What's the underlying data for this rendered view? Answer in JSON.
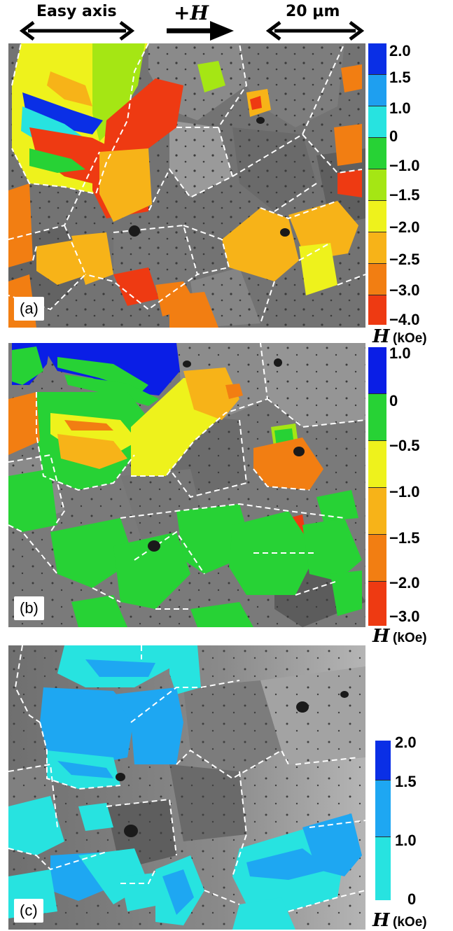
{
  "header": {
    "easy_axis": "Easy axis",
    "field_label": "+H",
    "scale": "20 μm"
  },
  "panels": [
    {
      "label": "(a)",
      "colorbar_ticks": [
        "2.0",
        "1.5",
        "1.0",
        "0",
        "−1.0",
        "−1.5",
        "−2.0",
        "−2.5",
        "−3.0",
        "−4.0"
      ],
      "colorbar_colors": [
        "#0a2fe6",
        "#1e9ff0",
        "#27e3e0",
        "#27d235",
        "#a5e614",
        "#eef21c",
        "#f7b318",
        "#f27e12",
        "#ee3a12"
      ]
    },
    {
      "label": "(b)",
      "colorbar_ticks": [
        "1.0",
        "0",
        "−0.5",
        "−1.0",
        "−1.5",
        "−2.0",
        "−3.0"
      ],
      "colorbar_colors": [
        "#0a1ee6",
        "#27d235",
        "#eef21c",
        "#f7b318",
        "#f27e12",
        "#ee3a12"
      ]
    },
    {
      "label": "(c)",
      "colorbar_ticks": [
        "2.0",
        "1.5",
        "1.0",
        "0"
      ],
      "colorbar_colors": [
        "#0a2fe6",
        "#1ea7f2",
        "#27e3e0"
      ]
    }
  ],
  "unit": {
    "symbol": "H",
    "text": "(kOe)"
  }
}
